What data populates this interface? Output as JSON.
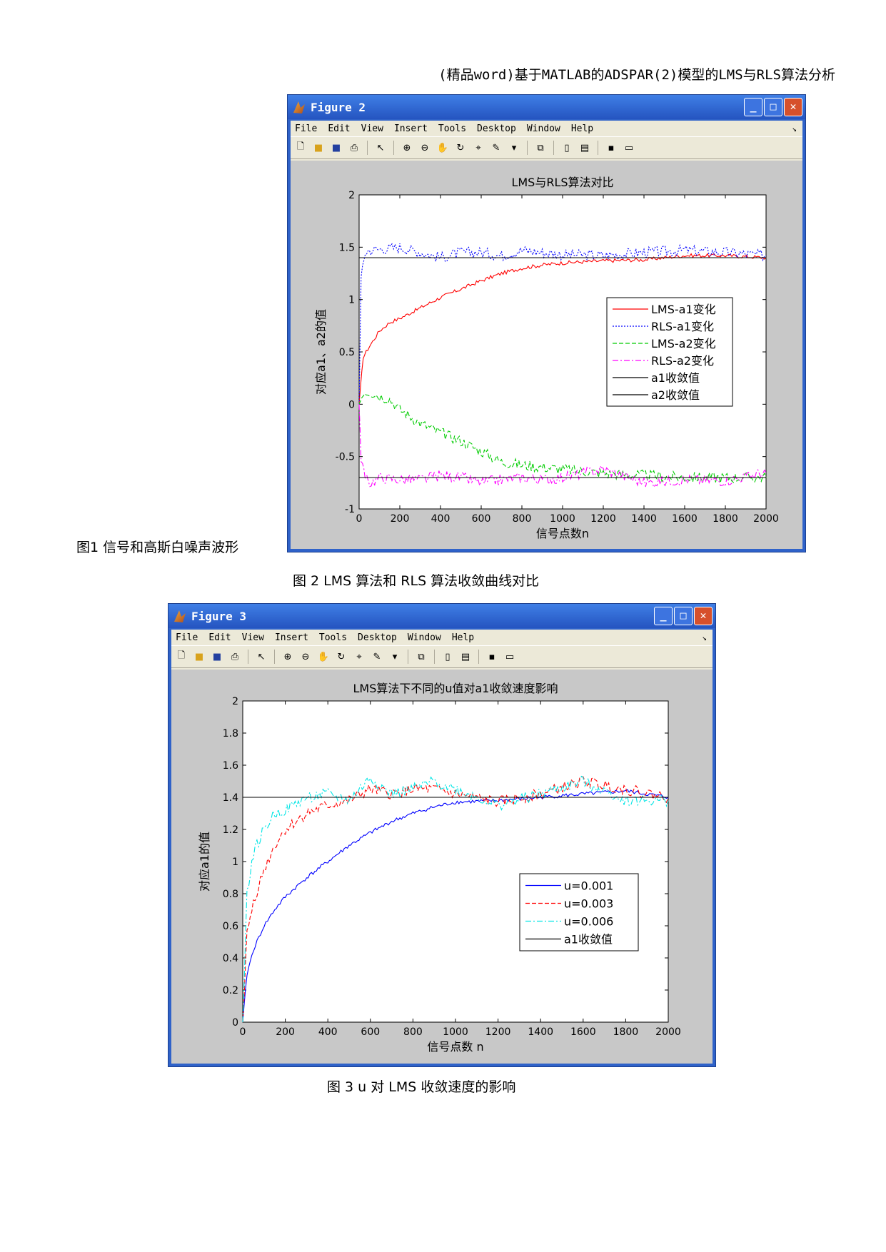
{
  "header": "(精品word)基于MATLAB的ADSPAR(2)模型的LMS与RLS算法分析",
  "captions": {
    "fig1": "图1 信号和高斯白噪声波形",
    "fig2": "图 2   LMS 算法和 RLS 算法收敛曲线对比",
    "fig3": "图 3   u 对 LMS 收敛速度的影响"
  },
  "menu": [
    "File",
    "Edit",
    "View",
    "Insert",
    "Tools",
    "Desktop",
    "Window",
    "Help"
  ],
  "toolbar_icons": [
    "new-file-icon",
    "open-folder-icon",
    "save-icon",
    "print-icon",
    "pointer-icon",
    "zoom-in-icon",
    "zoom-out-icon",
    "pan-hand-icon",
    "rotate-3d-icon",
    "data-cursor-icon",
    "brush-icon",
    "dropdown-arrow-icon",
    "link-plot-icon",
    "colorbar-icon",
    "legend-icon",
    "hide-plot-tools-icon",
    "show-plot-tools-icon"
  ],
  "window_buttons": {
    "minimize": "_",
    "maximize": "□",
    "close": "✕"
  },
  "figure2": {
    "window_title": "Figure 2",
    "chart_data": {
      "type": "line",
      "title": "LMS与RLS算法对比",
      "xlabel": "信号点数n",
      "ylabel": "对应a1、a2的值",
      "xlim": [
        0,
        2000
      ],
      "ylim": [
        -1,
        2
      ],
      "xticks": [
        0,
        200,
        400,
        600,
        800,
        1000,
        1200,
        1400,
        1600,
        1800,
        2000
      ],
      "yticks": [
        -1,
        -0.5,
        0,
        0.5,
        1,
        1.5,
        2
      ],
      "ytick_labels": [
        "-1",
        "-0.5",
        "0",
        "0.5",
        "1",
        "1.5",
        "2"
      ],
      "legend_position": "center-right",
      "series": [
        {
          "name": "LMS-a1变化",
          "color": "#ff0000",
          "style": "solid",
          "x": [
            0,
            20,
            50,
            100,
            150,
            200,
            300,
            400,
            500,
            600,
            700,
            800,
            900,
            1000,
            1200,
            1400,
            1600,
            1800,
            2000
          ],
          "y": [
            0,
            0.45,
            0.55,
            0.7,
            0.78,
            0.82,
            0.92,
            1.02,
            1.1,
            1.18,
            1.25,
            1.3,
            1.33,
            1.35,
            1.37,
            1.38,
            1.42,
            1.42,
            1.4
          ]
        },
        {
          "name": "RLS-a1变化",
          "color": "#0000ff",
          "style": "dotted",
          "x": [
            0,
            10,
            30,
            50,
            100,
            200,
            300,
            400,
            500,
            600,
            700,
            800,
            900,
            1000,
            1200,
            1400,
            1600,
            1800,
            2000
          ],
          "y": [
            0,
            1.2,
            1.45,
            1.47,
            1.48,
            1.5,
            1.45,
            1.4,
            1.45,
            1.45,
            1.42,
            1.47,
            1.45,
            1.43,
            1.42,
            1.45,
            1.47,
            1.45,
            1.42
          ]
        },
        {
          "name": "LMS-a2变化",
          "color": "#00cc00",
          "style": "dashed",
          "x": [
            0,
            20,
            50,
            100,
            150,
            200,
            300,
            400,
            500,
            600,
            700,
            800,
            900,
            1000,
            1200,
            1400,
            1600,
            1800,
            2000
          ],
          "y": [
            0,
            0.12,
            0.12,
            0.08,
            0.05,
            -0.05,
            -0.18,
            -0.27,
            -0.35,
            -0.45,
            -0.55,
            -0.58,
            -0.6,
            -0.62,
            -0.66,
            -0.68,
            -0.7,
            -0.7,
            -0.7
          ]
        },
        {
          "name": "RLS-a2变化",
          "color": "#ff00ff",
          "style": "dashdot",
          "x": [
            0,
            10,
            30,
            60,
            100,
            200,
            300,
            400,
            500,
            600,
            700,
            800,
            900,
            1000,
            1200,
            1400,
            1600,
            1800,
            2000
          ],
          "y": [
            0,
            -0.5,
            -0.72,
            -0.75,
            -0.7,
            -0.72,
            -0.72,
            -0.68,
            -0.7,
            -0.75,
            -0.72,
            -0.7,
            -0.72,
            -0.7,
            -0.62,
            -0.75,
            -0.72,
            -0.73,
            -0.65
          ]
        },
        {
          "name": "a1收敛值",
          "color": "#000000",
          "style": "solid",
          "x": [
            0,
            2000
          ],
          "y": [
            1.4,
            1.4
          ]
        },
        {
          "name": "a2收敛值",
          "color": "#000000",
          "style": "solid",
          "x": [
            0,
            2000
          ],
          "y": [
            -0.7,
            -0.7
          ]
        }
      ]
    }
  },
  "figure3": {
    "window_title": "Figure 3",
    "chart_data": {
      "type": "line",
      "title": "LMS算法下不同的u值对a1收敛速度影响",
      "xlabel": "信号点数 n",
      "ylabel": "对应a1的值",
      "xlim": [
        0,
        2000
      ],
      "ylim": [
        0,
        2
      ],
      "xticks": [
        0,
        200,
        400,
        600,
        800,
        1000,
        1200,
        1400,
        1600,
        1800,
        2000
      ],
      "yticks": [
        0,
        0.2,
        0.4,
        0.6,
        0.8,
        1,
        1.2,
        1.4,
        1.6,
        1.8,
        2
      ],
      "ytick_labels": [
        "0",
        "0.2",
        "0.4",
        "0.6",
        "0.8",
        "1",
        "1.2",
        "1.4",
        "1.6",
        "1.8",
        "2"
      ],
      "legend_position": "center-right",
      "series": [
        {
          "name": "u=0.001",
          "color": "#0000ff",
          "style": "solid",
          "x": [
            0,
            20,
            50,
            100,
            150,
            200,
            300,
            400,
            500,
            600,
            700,
            800,
            900,
            1000,
            1200,
            1400,
            1600,
            1800,
            2000
          ],
          "y": [
            0,
            0.3,
            0.45,
            0.6,
            0.7,
            0.78,
            0.9,
            1.0,
            1.1,
            1.18,
            1.25,
            1.3,
            1.34,
            1.37,
            1.38,
            1.4,
            1.42,
            1.44,
            1.4
          ]
        },
        {
          "name": "u=0.003",
          "color": "#ff0000",
          "style": "dashed",
          "x": [
            0,
            20,
            50,
            100,
            150,
            200,
            300,
            400,
            500,
            600,
            700,
            800,
            900,
            1000,
            1200,
            1400,
            1600,
            1800,
            2000
          ],
          "y": [
            0,
            0.55,
            0.75,
            0.95,
            1.1,
            1.2,
            1.3,
            1.35,
            1.38,
            1.45,
            1.42,
            1.45,
            1.45,
            1.42,
            1.37,
            1.42,
            1.5,
            1.45,
            1.4
          ]
        },
        {
          "name": "u=0.006",
          "color": "#00e5e5",
          "style": "dashdot",
          "x": [
            0,
            20,
            50,
            100,
            150,
            200,
            300,
            400,
            500,
            600,
            700,
            800,
            900,
            1000,
            1200,
            1400,
            1600,
            1800,
            2000
          ],
          "y": [
            0,
            0.8,
            1.05,
            1.2,
            1.3,
            1.32,
            1.4,
            1.42,
            1.38,
            1.52,
            1.42,
            1.45,
            1.5,
            1.45,
            1.35,
            1.42,
            1.5,
            1.38,
            1.38
          ]
        },
        {
          "name": "a1收敛值",
          "color": "#000000",
          "style": "solid",
          "x": [
            0,
            2000
          ],
          "y": [
            1.4,
            1.4
          ]
        }
      ]
    }
  }
}
